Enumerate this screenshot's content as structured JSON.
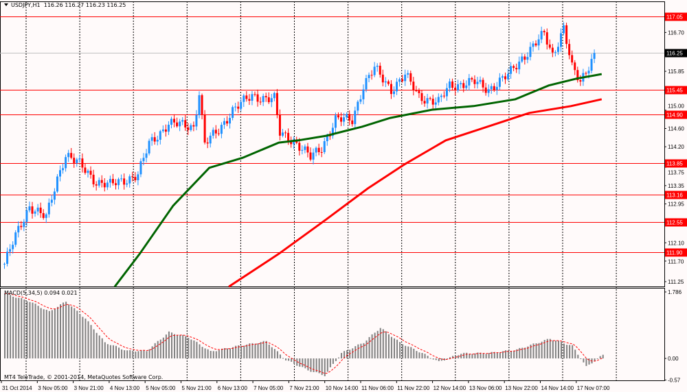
{
  "header": {
    "symbol": "USDJPY,H1",
    "open": "116.26",
    "high": "116.27",
    "low": "116.23",
    "close": "116.25"
  },
  "macd_label": {
    "name": "MACD(5,34,5)",
    "value": "0.094",
    "signal": "0.021"
  },
  "copyright": "MT4 TeleTrade, © 2001-2014, MetaQuotes Software Corp.",
  "colors": {
    "background": "#fffafa",
    "bull": "#1e90ff",
    "bear": "#ff0000",
    "ma_fast": "#006400",
    "ma_slow": "#ff0000",
    "level": "#ff0000",
    "macd_hist": "#808080",
    "macd_signal": "#ff0000"
  },
  "chart_data": {
    "type": "candlestick",
    "symbol": "USDJPY",
    "timeframe": "H1",
    "ylim": [
      111.15,
      117.2
    ],
    "price_ticks": [
      "116.70",
      "115.85",
      "115.00",
      "114.60",
      "114.20",
      "113.75",
      "113.35",
      "112.95",
      "112.10",
      "111.70",
      "111.25"
    ],
    "current_price": "116.25",
    "levels": [
      "117.05",
      "115.45",
      "114.90",
      "113.85",
      "113.16",
      "112.55",
      "111.90"
    ],
    "time_labels": [
      "31 Oct 2014",
      "3 Nov 05:00",
      "3 Nov 21:00",
      "4 Nov 13:00",
      "5 Nov 05:00",
      "5 Nov 21:00",
      "6 Nov 13:00",
      "7 Nov 05:00",
      "7 Nov 21:00",
      "10 Nov 14:00",
      "11 Nov 06:00",
      "11 Nov 22:00",
      "12 Nov 14:00",
      "13 Nov 06:00",
      "13 Nov 22:00",
      "14 Nov 14:00",
      "17 Nov 07:00"
    ],
    "close_path": [
      [
        0,
        111.64
      ],
      [
        4,
        112.24
      ],
      [
        9,
        112.91
      ],
      [
        15,
        112.64
      ],
      [
        19,
        113.51
      ],
      [
        22,
        114.04
      ],
      [
        27,
        113.81
      ],
      [
        33,
        113.44
      ],
      [
        38,
        113.36
      ],
      [
        48,
        113.59
      ],
      [
        52,
        114.26
      ],
      [
        59,
        114.71
      ],
      [
        68,
        114.64
      ],
      [
        70,
        115.39
      ],
      [
        72,
        114.26
      ],
      [
        77,
        114.56
      ],
      [
        82,
        115.01
      ],
      [
        89,
        115.31
      ],
      [
        97,
        115.24
      ],
      [
        99,
        114.49
      ],
      [
        104,
        114.34
      ],
      [
        110,
        113.96
      ],
      [
        114,
        114.19
      ],
      [
        119,
        114.79
      ],
      [
        125,
        114.79
      ],
      [
        129,
        115.54
      ],
      [
        133,
        115.91
      ],
      [
        139,
        115.46
      ],
      [
        144,
        115.76
      ],
      [
        149,
        115.31
      ],
      [
        156,
        115.16
      ],
      [
        160,
        115.54
      ],
      [
        169,
        115.61
      ],
      [
        174,
        115.46
      ],
      [
        181,
        115.76
      ],
      [
        186,
        116.14
      ],
      [
        194,
        116.66
      ],
      [
        197,
        116.21
      ],
      [
        201,
        116.81
      ],
      [
        204,
        115.91
      ],
      [
        207,
        115.61
      ],
      [
        212,
        116.25
      ]
    ],
    "ma_fast": [
      [
        40,
        111.14
      ],
      [
        49,
        111.86
      ],
      [
        61,
        112.91
      ],
      [
        74,
        113.74
      ],
      [
        86,
        113.96
      ],
      [
        99,
        114.29
      ],
      [
        106,
        114.34
      ],
      [
        116,
        114.44
      ],
      [
        129,
        114.64
      ],
      [
        139,
        114.83
      ],
      [
        154,
        115.01
      ],
      [
        169,
        115.09
      ],
      [
        184,
        115.24
      ],
      [
        196,
        115.54
      ],
      [
        206,
        115.69
      ],
      [
        215,
        115.79
      ]
    ],
    "ma_slow": [
      [
        81,
        111.14
      ],
      [
        99,
        111.86
      ],
      [
        116,
        112.61
      ],
      [
        131,
        113.29
      ],
      [
        144,
        113.81
      ],
      [
        159,
        114.34
      ],
      [
        174,
        114.64
      ],
      [
        189,
        114.94
      ],
      [
        204,
        115.09
      ],
      [
        215,
        115.24
      ]
    ],
    "macd": {
      "ylim": [
        -0.57,
        1.786
      ],
      "ticks": [
        "1.786",
        "0.00",
        "-0.57"
      ],
      "hist": [
        [
          0,
          1.71
        ],
        [
          9,
          1.5
        ],
        [
          16,
          1.23
        ],
        [
          22,
          1.5
        ],
        [
          29,
          1.05
        ],
        [
          36,
          0.42
        ],
        [
          44,
          0.2
        ],
        [
          51,
          0.2
        ],
        [
          59,
          0.69
        ],
        [
          66,
          0.56
        ],
        [
          74,
          0.18
        ],
        [
          84,
          0.33
        ],
        [
          94,
          0.45
        ],
        [
          101,
          -0.04
        ],
        [
          109,
          -0.31
        ],
        [
          115,
          -0.45
        ],
        [
          121,
          0.14
        ],
        [
          129,
          0.42
        ],
        [
          135,
          0.81
        ],
        [
          142,
          0.42
        ],
        [
          150,
          0.14
        ],
        [
          156,
          -0.09
        ],
        [
          164,
          0.13
        ],
        [
          174,
          0.14
        ],
        [
          184,
          0.23
        ],
        [
          196,
          0.52
        ],
        [
          204,
          0.33
        ],
        [
          209,
          -0.22
        ],
        [
          215,
          0.094
        ]
      ]
    }
  }
}
